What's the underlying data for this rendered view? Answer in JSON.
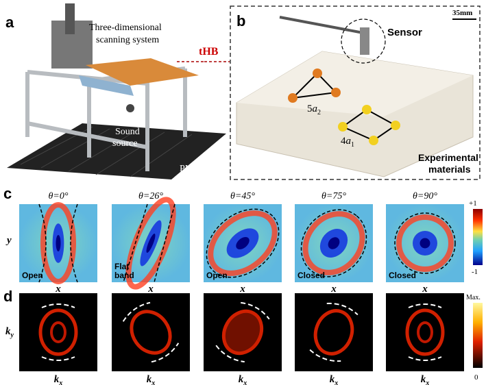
{
  "panel_a": {
    "label": "a",
    "scanner_label": [
      "Three-dimensional",
      "scanning system"
    ],
    "sample_label": "tHB",
    "source_label": [
      "Sound",
      "source"
    ],
    "pml_label": "PML"
  },
  "panel_b": {
    "label": "b",
    "scale_bar": "35mm",
    "sensor_label": "Sensor",
    "lattice_labels": [
      {
        "coefficient": "5",
        "symbol": "a",
        "subscript": "2"
      },
      {
        "coefficient": "4",
        "symbol": "a",
        "subscript": "1"
      }
    ],
    "materials_label": [
      "Experimental",
      "materials"
    ]
  },
  "panel_c": {
    "label": "c",
    "y_axis": "y",
    "colorbar": {
      "max": "+1",
      "min": "-1"
    },
    "maps": [
      {
        "title": "θ=0°",
        "x_axis": "x",
        "note": [
          "Open"
        ]
      },
      {
        "title": "θ=26°",
        "x_axis": "x",
        "note": [
          "Flat",
          "band"
        ]
      },
      {
        "title": "θ=45°",
        "x_axis": "x",
        "note": [
          "Open"
        ]
      },
      {
        "title": "θ=75°",
        "x_axis": "x",
        "note": [
          "Closed"
        ]
      },
      {
        "title": "θ=90°",
        "x_axis": "x",
        "note": [
          "Closed"
        ]
      }
    ]
  },
  "panel_d": {
    "label": "d",
    "y_axis": {
      "symbol": "k",
      "subscript": "y"
    },
    "colorbar": {
      "max": "Max.",
      "min": "0"
    },
    "maps": [
      {
        "x_axis": {
          "symbol": "k",
          "subscript": "x"
        }
      },
      {
        "x_axis": {
          "symbol": "k",
          "subscript": "x"
        }
      },
      {
        "x_axis": {
          "symbol": "k",
          "subscript": "x"
        }
      },
      {
        "x_axis": {
          "symbol": "k",
          "subscript": "x"
        }
      },
      {
        "x_axis": {
          "symbol": "k",
          "subscript": "x"
        }
      }
    ]
  }
}
